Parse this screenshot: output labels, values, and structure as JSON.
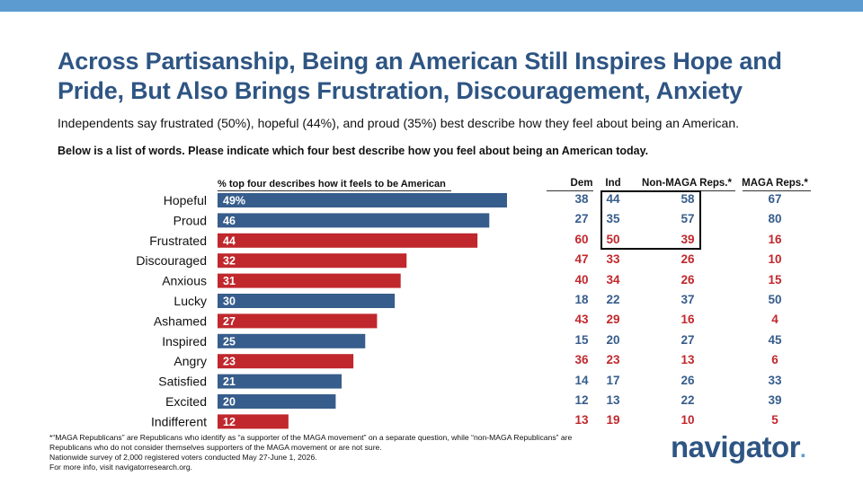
{
  "title": "Across Partisanship, Being an American Still Inspires Hope and Pride, But Also Brings Frustration, Discouragement, Anxiety",
  "subtitle": "Independents say frustrated (50%), hopeful (44%), and proud (35%) best describe how they feel about being an American.",
  "question": "Below is a list of words. Please indicate which four best describe how you feel about being an American today.",
  "colors": {
    "positive": "#375d8c",
    "negative": "#c0282d",
    "title": "#2e5583",
    "accent_bar": "#5b9bd0"
  },
  "chart_data": {
    "type": "bar",
    "orientation": "horizontal",
    "title": "% top four describes how it feels to be American",
    "categories": [
      "Hopeful",
      "Proud",
      "Frustrated",
      "Discouraged",
      "Anxious",
      "Lucky",
      "Ashamed",
      "Inspired",
      "Angry",
      "Satisfied",
      "Excited",
      "Indifferent"
    ],
    "values": [
      49,
      46,
      44,
      32,
      31,
      30,
      27,
      25,
      23,
      21,
      20,
      12
    ],
    "value_labels": [
      "49%",
      "46",
      "44",
      "32",
      "31",
      "30",
      "27",
      "25",
      "23",
      "21",
      "20",
      "12"
    ],
    "sentiment": [
      "positive",
      "positive",
      "negative",
      "negative",
      "negative",
      "positive",
      "negative",
      "positive",
      "negative",
      "positive",
      "positive",
      "negative"
    ],
    "xlim": [
      0,
      49
    ],
    "grid": false,
    "table": {
      "columns": [
        "Dem",
        "Ind",
        "Non-MAGA Reps.*",
        "MAGA Reps.*"
      ],
      "rows": [
        [
          38,
          44,
          58,
          67
        ],
        [
          27,
          35,
          57,
          80
        ],
        [
          60,
          50,
          39,
          16
        ],
        [
          47,
          33,
          26,
          10
        ],
        [
          40,
          34,
          26,
          15
        ],
        [
          18,
          22,
          37,
          50
        ],
        [
          43,
          29,
          16,
          4
        ],
        [
          15,
          20,
          27,
          45
        ],
        [
          36,
          23,
          13,
          6
        ],
        [
          14,
          17,
          26,
          33
        ],
        [
          12,
          13,
          22,
          39
        ],
        [
          13,
          19,
          10,
          5
        ]
      ],
      "highlighted": "Ind and Non-MAGA Reps. for Hopeful, Proud, Frustrated"
    }
  },
  "footnote": {
    "line1": "*“MAGA Republicans” are Republicans who identify as “a supporter of the MAGA movement” on a separate question, while “non-MAGA Republicans” are",
    "line2": "Republicans who do not consider themselves supporters of the MAGA movement or are not sure.",
    "line3": "Nationwide survey of 2,000 registered voters conducted May 27-June 1, 2026.",
    "line4": "For more info, visit navigatorresearch.org."
  },
  "logo": {
    "text": "navigator",
    "dot": "."
  }
}
